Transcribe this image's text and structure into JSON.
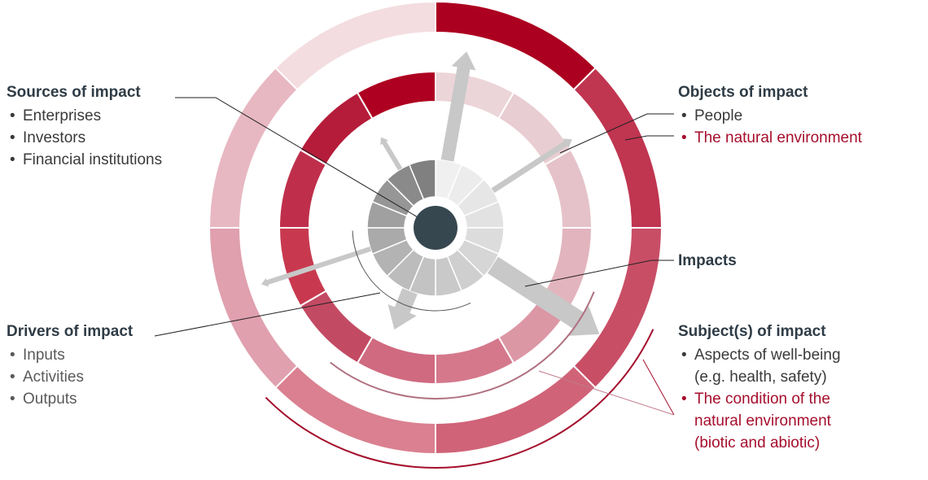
{
  "sources": {
    "title": "Sources of impact",
    "items": [
      "Enterprises",
      "Investors",
      "Financial institutions"
    ]
  },
  "objects": {
    "title": "Objects of impact",
    "items": [
      "People",
      "The natural environment"
    ]
  },
  "impacts": {
    "title": "Impacts"
  },
  "drivers": {
    "title": "Drivers of impact",
    "items": [
      "Inputs",
      "Activities",
      "Outputs"
    ]
  },
  "subjects": {
    "title": "Subject(s) of impact",
    "item1_line1": "Aspects of well-being",
    "item1_line2": "(e.g. health, safety)",
    "item2_line1": "The condition of the",
    "item2_line2": "natural environment",
    "item2_line3": "(biotic and abiotic)"
  },
  "colors": {
    "dark_text": "#2f3c46",
    "accent_red": "#a50f2d",
    "center": "#37474f",
    "arrow": "#c8c8c8"
  }
}
